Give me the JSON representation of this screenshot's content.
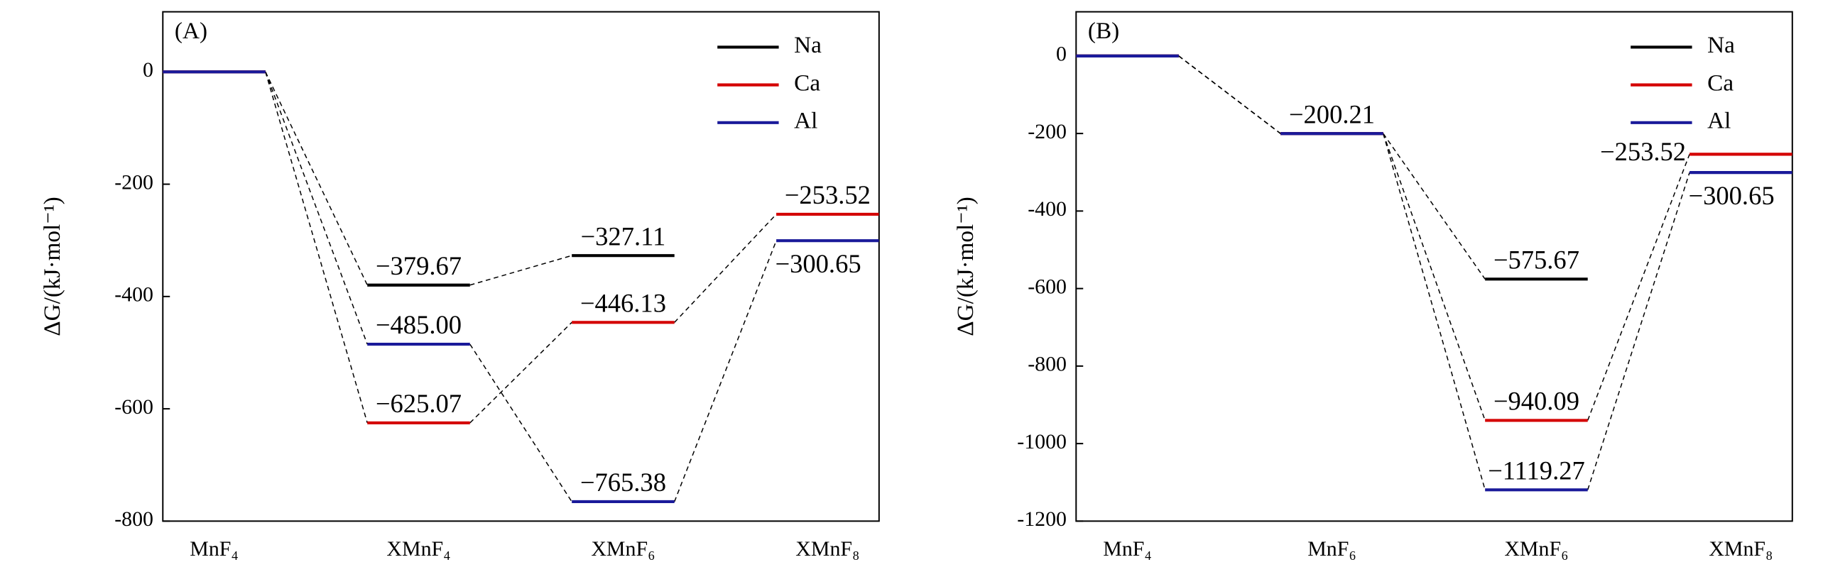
{
  "chart_data": [
    {
      "type": "line",
      "panel_label": "(A)",
      "y_label": "ΔG/(kJ·mol⁻¹)",
      "categories": [
        "MnF₄",
        "XMnF₄",
        "XMnF₆",
        "XMnF₈"
      ],
      "ylim": [
        -800,
        107
      ],
      "yticks": [
        0,
        -200,
        -400,
        -600,
        -800
      ],
      "legend": "upper right",
      "series": [
        {
          "name": "Na",
          "color": "#000000",
          "values": [
            0,
            -379.67,
            -327.11,
            null
          ],
          "value_labels": [
            null,
            "−379.67",
            "−327.11",
            null
          ]
        },
        {
          "name": "Ca",
          "color": "#d40000",
          "values": [
            0,
            -625.07,
            -446.13,
            -253.52
          ],
          "value_labels": [
            null,
            "−625.07",
            "−446.13",
            "−253.52"
          ]
        },
        {
          "name": "Al",
          "color": "#1a1a9a",
          "values": [
            0,
            -485.0,
            -765.38,
            -300.65
          ],
          "value_labels": [
            null,
            "−485.00",
            "−765.38",
            "−300.65"
          ]
        }
      ]
    },
    {
      "type": "line",
      "panel_label": "(B)",
      "y_label": "ΔG/(kJ·mol⁻¹)",
      "categories": [
        "MnF₄",
        "MnF₆",
        "XMnF₆",
        "XMnF₈"
      ],
      "ylim": [
        -1200,
        114
      ],
      "yticks": [
        0,
        -200,
        -400,
        -600,
        -800,
        -1000,
        -1200
      ],
      "legend": "upper right",
      "series": [
        {
          "name": "Na",
          "color": "#000000",
          "values": [
            0,
            -200.21,
            -575.67,
            null
          ],
          "value_labels": [
            null,
            "−200.21",
            "−575.67",
            null
          ]
        },
        {
          "name": "Ca",
          "color": "#d40000",
          "values": [
            0,
            -200.21,
            -940.09,
            -253.52
          ],
          "value_labels": [
            null,
            null,
            "−940.09",
            "−253.52"
          ]
        },
        {
          "name": "Al",
          "color": "#1a1a9a",
          "values": [
            0,
            -200.21,
            -1119.27,
            -300.65
          ],
          "value_labels": [
            null,
            null,
            "−1119.27",
            "−300.65"
          ]
        }
      ]
    }
  ]
}
